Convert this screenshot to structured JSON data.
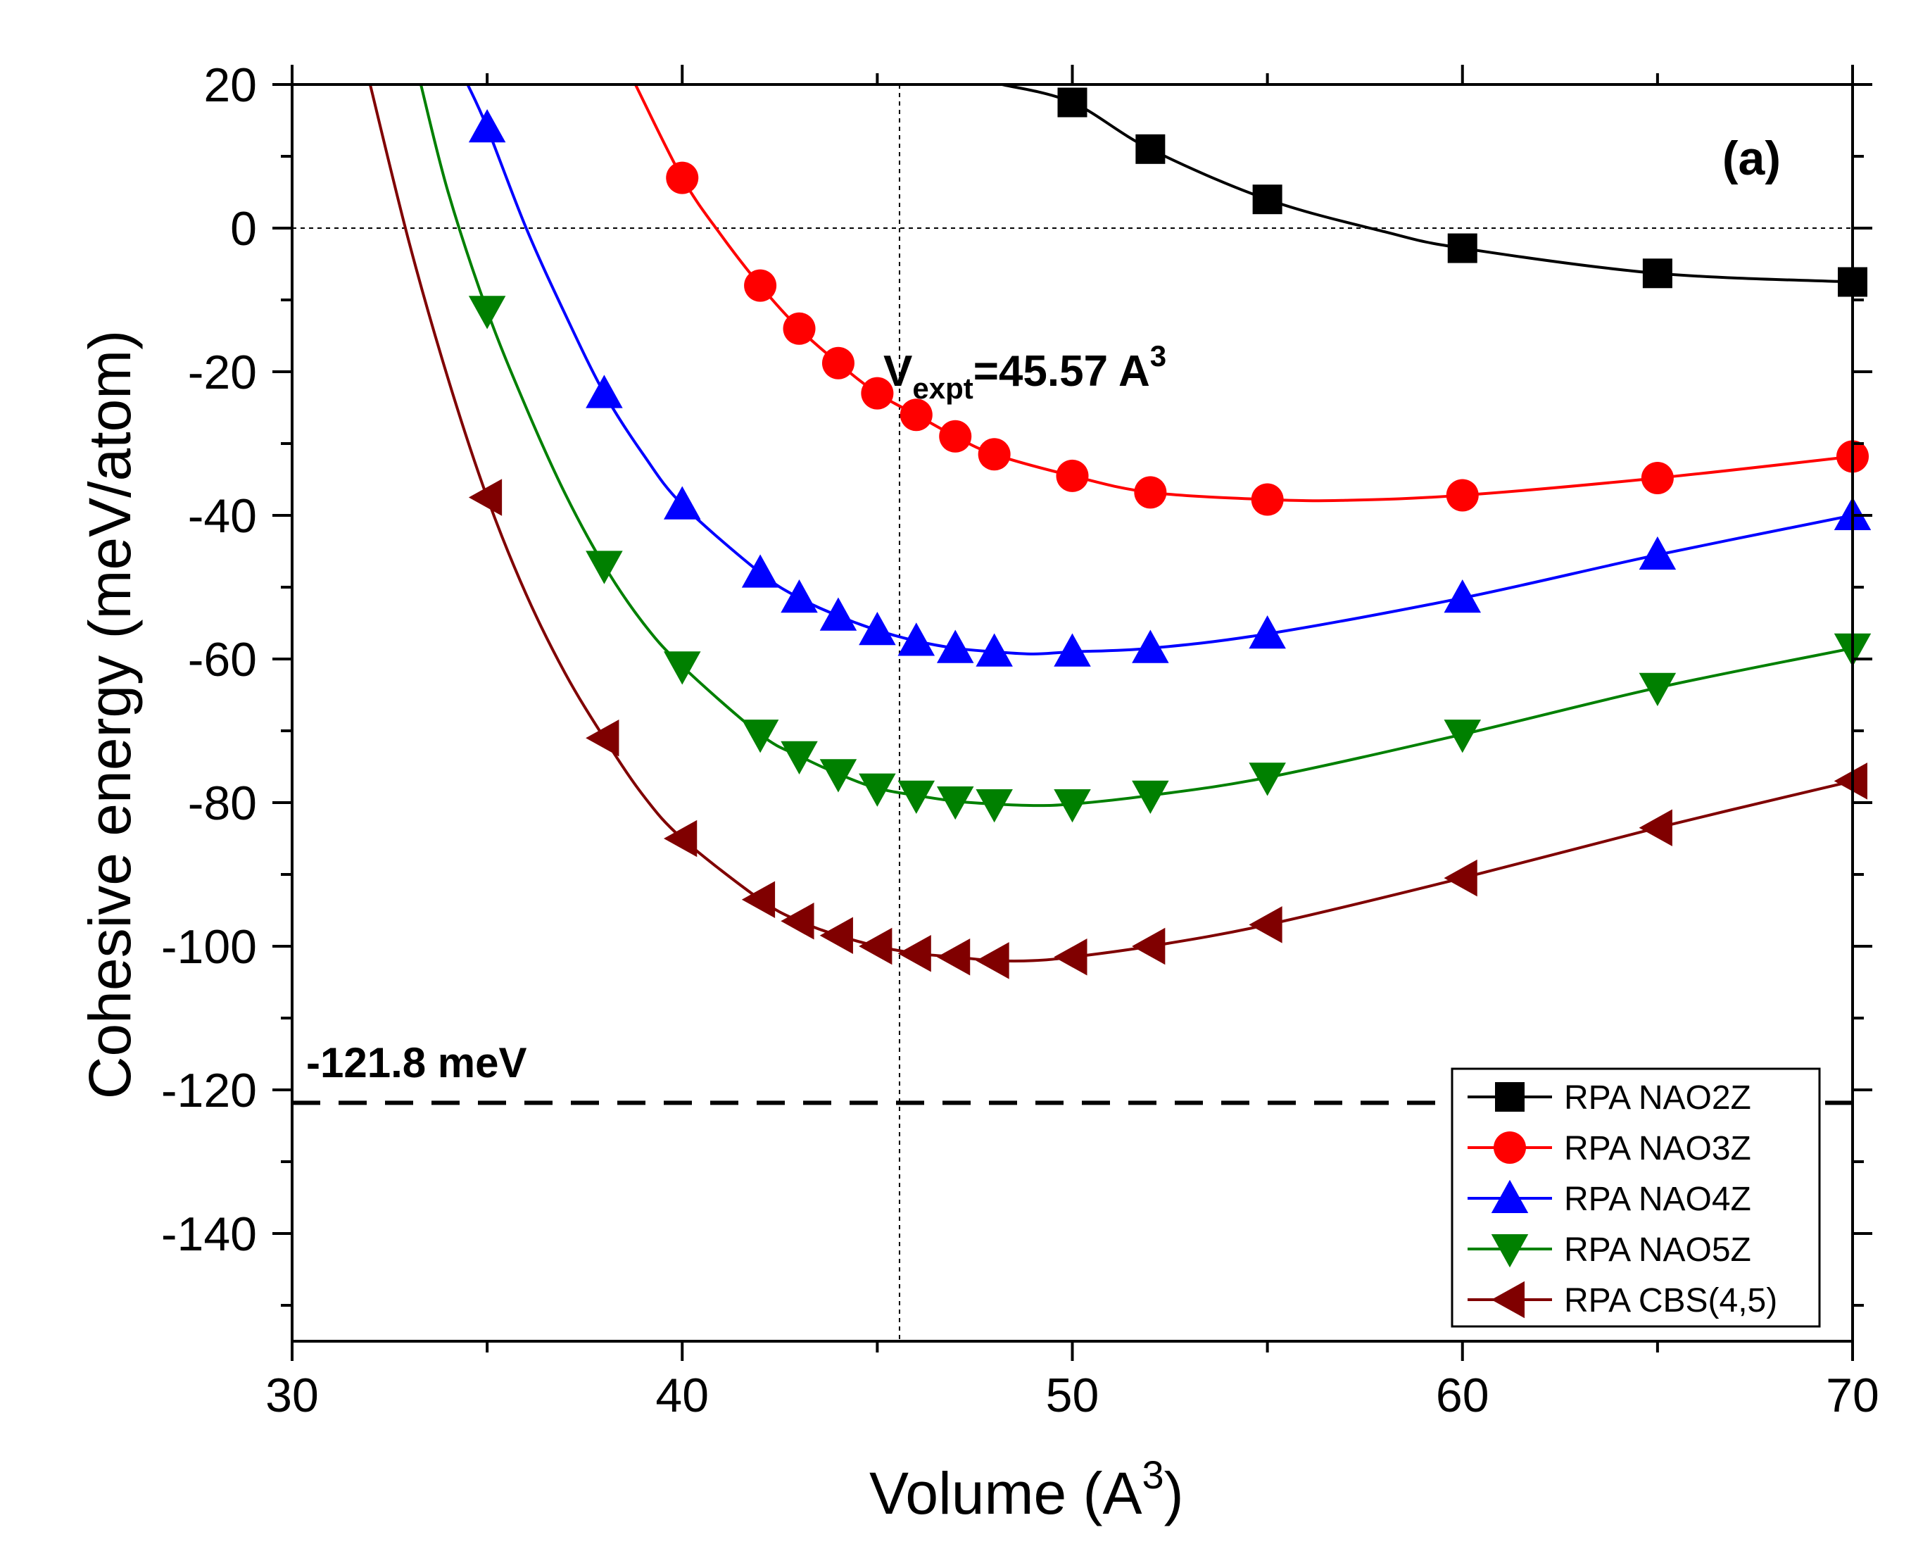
{
  "chart_data": {
    "type": "line",
    "panel_label": "(a)",
    "xlabel": "Volume (A",
    "xlabel_sup": "3",
    "xlabel_close": ")",
    "ylabel": "Cohesive energy (meV/atom)",
    "xlim": [
      30,
      70
    ],
    "ylim": [
      -155,
      20
    ],
    "xticks": [
      30,
      40,
      50,
      60,
      70
    ],
    "yticks": [
      20,
      0,
      -20,
      -40,
      -60,
      -80,
      -100,
      -120,
      -140
    ],
    "ref_hline": {
      "y": -121.8,
      "label": "-121.8 meV"
    },
    "ref_vline": {
      "x": 45.57,
      "label_main": "V",
      "label_sub": "expt",
      "label_rest": "=45.57 A",
      "label_sup": "3"
    },
    "zero_line": {
      "y": 0
    },
    "series": [
      {
        "name": "RPA NAO2Z",
        "color": "#000000",
        "marker": "square",
        "x": [
          50,
          52,
          55,
          60,
          65,
          70
        ],
        "y": [
          17.5,
          11,
          4,
          -2.8,
          -6.3,
          -7.5
        ],
        "curve_x": [
          48.2,
          50,
          52,
          55,
          58,
          60,
          65,
          70
        ],
        "curve_y": [
          20,
          17.5,
          11,
          4,
          -0.5,
          -2.8,
          -6.3,
          -7.5
        ]
      },
      {
        "name": "RPA NAO3Z",
        "color": "#ff0000",
        "marker": "circle",
        "x": [
          40,
          42,
          43,
          44,
          45,
          46,
          47,
          48,
          50,
          52,
          55,
          60,
          65,
          70
        ],
        "y": [
          7,
          -8,
          -14,
          -18.8,
          -23,
          -26,
          -29,
          -31.5,
          -34.5,
          -36.8,
          -37.8,
          -37.2,
          -34.8,
          -31.8
        ],
        "curve_x": [
          38.8,
          40,
          41,
          42,
          43,
          44,
          45,
          46,
          47,
          48,
          50,
          52,
          55,
          57,
          60,
          65,
          70
        ],
        "curve_y": [
          20,
          7,
          -1,
          -8,
          -14,
          -18.8,
          -23,
          -26,
          -29,
          -31.5,
          -34.5,
          -36.8,
          -37.8,
          -37.9,
          -37.2,
          -34.8,
          -31.8
        ]
      },
      {
        "name": "RPA NAO4Z",
        "color": "#0000ff",
        "marker": "triangle-up",
        "x": [
          35,
          38,
          40,
          42,
          43,
          44,
          45,
          46,
          47,
          48,
          50,
          52,
          55,
          60,
          65,
          70
        ],
        "y": [
          14,
          -23,
          -38.5,
          -48,
          -51.5,
          -54,
          -56,
          -57.5,
          -58.5,
          -59,
          -59,
          -58.5,
          -56.5,
          -51.5,
          -45.5,
          -40
        ],
        "curve_x": [
          34.5,
          35,
          36,
          37,
          38,
          39,
          40,
          42,
          43,
          44,
          45,
          46,
          47,
          48,
          49,
          50,
          52,
          55,
          60,
          65,
          70
        ],
        "curve_y": [
          20,
          14,
          0,
          -12,
          -23,
          -31.5,
          -38.5,
          -48,
          -51.5,
          -54,
          -56,
          -57.5,
          -58.5,
          -59,
          -59.3,
          -59,
          -58.5,
          -56.5,
          -51.5,
          -45.5,
          -40
        ]
      },
      {
        "name": "RPA NAO5Z",
        "color": "#008000",
        "marker": "triangle-down",
        "x": [
          35,
          38,
          40,
          42,
          43,
          44,
          45,
          46,
          47,
          48,
          50,
          52,
          55,
          60,
          65,
          70
        ],
        "y": [
          -11.5,
          -47,
          -61,
          -70.5,
          -73.5,
          -76,
          -78,
          -79,
          -79.8,
          -80.2,
          -80.2,
          -79,
          -76.5,
          -70.5,
          -64,
          -58.5
        ],
        "curve_x": [
          33.3,
          34,
          35,
          36,
          37,
          38,
          39,
          40,
          42,
          43,
          44,
          45,
          46,
          47,
          48,
          49,
          50,
          52,
          55,
          60,
          65,
          70
        ],
        "curve_y": [
          20,
          5,
          -11.5,
          -25,
          -37,
          -47,
          -55,
          -61,
          -70.5,
          -73.5,
          -76,
          -78,
          -79,
          -79.8,
          -80.2,
          -80.4,
          -80.2,
          -79,
          -76.5,
          -70.5,
          -64,
          -58.5
        ]
      },
      {
        "name": "RPA CBS(4,5)",
        "color": "#800000",
        "marker": "triangle-left",
        "x": [
          35,
          38,
          40,
          42,
          43,
          44,
          45,
          46,
          47,
          48,
          50,
          52,
          55,
          60,
          65,
          70
        ],
        "y": [
          -37.5,
          -71,
          -85,
          -93.5,
          -96.5,
          -98.5,
          -100,
          -101,
          -101.5,
          -102,
          -101.5,
          -100,
          -97,
          -90.5,
          -83.5,
          -77
        ],
        "curve_x": [
          32,
          33,
          34,
          35,
          36,
          37,
          38,
          39,
          40,
          42,
          43,
          44,
          45,
          46,
          47,
          48,
          49,
          50,
          52,
          55,
          60,
          65,
          70
        ],
        "curve_y": [
          20,
          -2,
          -21,
          -37.5,
          -51,
          -62,
          -71,
          -79,
          -85,
          -93.5,
          -96.5,
          -98.5,
          -100,
          -101,
          -101.5,
          -102,
          -102,
          -101.5,
          -100,
          -97,
          -90.5,
          -83.5,
          -77
        ]
      }
    ]
  }
}
